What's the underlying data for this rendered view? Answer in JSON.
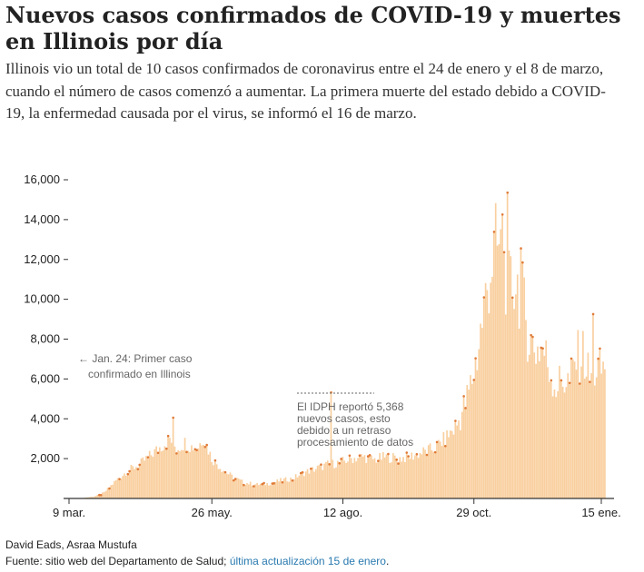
{
  "header": {
    "title": "Nuevos casos confirmados de COVID-19 y muertes en Illinois por día",
    "subtitle": "Illinois vio un total de 10 casos confirmados de coronavirus entre el 24 de enero y el 8 de marzo, cuando el número de casos comenzó a aumentar. La primera muerte del estado debido a COVID-19, la enfermedad causada por el virus, se informó el 16 de marzo."
  },
  "colors": {
    "bars": "#f9cf9f",
    "dots": "#e07b39",
    "axis": "#333333",
    "text": "#222222",
    "link": "#2a7ab0"
  },
  "chart_data": {
    "type": "bar",
    "title": "",
    "xlabel": "",
    "ylabel": "",
    "ylim": [
      0,
      16000
    ],
    "y_ticks": [
      2000,
      4000,
      6000,
      8000,
      10000,
      12000,
      14000,
      16000
    ],
    "y_tick_labels": [
      "2,000",
      "4,000",
      "6,000",
      "8,000",
      "10,000",
      "12,000",
      "14,000",
      "16,000"
    ],
    "x_ticks": [
      {
        "day": 0,
        "label": "9 mar."
      },
      {
        "day": 78,
        "label": "26 may."
      },
      {
        "day": 156,
        "label": "12 ago."
      },
      {
        "day": 234,
        "label": "29 oct."
      },
      {
        "day": 312,
        "label": "15 ene."
      }
    ],
    "x_anchor_points": [
      [
        0,
        10
      ],
      [
        8,
        100
      ],
      [
        14,
        300
      ],
      [
        21,
        900
      ],
      [
        28,
        1400
      ],
      [
        35,
        1700
      ],
      [
        42,
        2200
      ],
      [
        49,
        2700
      ],
      [
        53,
        3000
      ],
      [
        57,
        2500
      ],
      [
        62,
        2800
      ],
      [
        66,
        2600
      ],
      [
        70,
        2600
      ],
      [
        73,
        3100
      ],
      [
        78,
        2000
      ],
      [
        84,
        1500
      ],
      [
        90,
        1100
      ],
      [
        97,
        800
      ],
      [
        105,
        700
      ],
      [
        112,
        750
      ],
      [
        119,
        900
      ],
      [
        126,
        1000
      ],
      [
        133,
        1300
      ],
      [
        140,
        1500
      ],
      [
        147,
        1700
      ],
      [
        154,
        1800
      ],
      [
        161,
        2000
      ],
      [
        168,
        2100
      ],
      [
        175,
        1950
      ],
      [
        182,
        2100
      ],
      [
        189,
        2000
      ],
      [
        196,
        2100
      ],
      [
        203,
        2300
      ],
      [
        210,
        2500
      ],
      [
        217,
        3000
      ],
      [
        224,
        3700
      ],
      [
        230,
        5000
      ],
      [
        233,
        6000
      ],
      [
        236,
        7200
      ],
      [
        240,
        9500
      ],
      [
        244,
        11500
      ],
      [
        247,
        12600
      ],
      [
        251,
        12100
      ],
      [
        255,
        10500
      ],
      [
        259,
        11000
      ],
      [
        263,
        10000
      ],
      [
        267,
        8000
      ],
      [
        271,
        7500
      ],
      [
        275,
        7600
      ],
      [
        279,
        6500
      ],
      [
        283,
        5600
      ],
      [
        287,
        6000
      ],
      [
        291,
        5800
      ],
      [
        295,
        7000
      ],
      [
        299,
        7300
      ],
      [
        303,
        6000
      ],
      [
        307,
        6500
      ],
      [
        310,
        6400
      ],
      [
        312,
        6700
      ]
    ],
    "highlighted_points": [
      {
        "day": 149,
        "value": 5368
      },
      {
        "day": 254,
        "value": 15400
      },
      {
        "day": 251,
        "value": 14300
      },
      {
        "day": 262,
        "value": 12600
      },
      {
        "day": 305,
        "value": 9300
      },
      {
        "day": 55,
        "value": 4100
      }
    ]
  },
  "annotations": {
    "first_case_line1": "← Jan. 24: Primer caso",
    "first_case_line2": "confirmado en Illinois",
    "idph_line1": "El IDPH reportó 5,368",
    "idph_line2": "nuevos casos, esto",
    "idph_line3": "debido a un retraso",
    "idph_line4": "procesamiento de datos"
  },
  "footer": {
    "byline": "David Eads, Asraa Mustufa",
    "source_text": "Fuente: sitio web del Departamento de Salud; ",
    "update_link": "última actualización 15 de enero",
    "source_end": "."
  }
}
